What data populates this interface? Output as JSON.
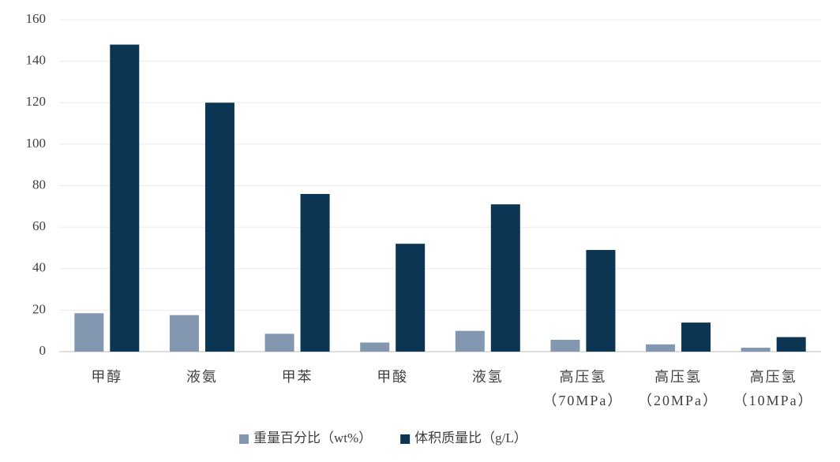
{
  "chart_data": {
    "type": "bar",
    "categories": [
      "甲醇",
      "液氨",
      "甲苯",
      "甲酸",
      "液氢",
      "高压氢\n（70MPa）",
      "高压氢\n（20MPa）",
      "高压氢\n（10MPa）"
    ],
    "series": [
      {
        "name": "重量百分比（wt%）",
        "color": "#8497b0",
        "values": [
          18.5,
          17.6,
          8.6,
          4.4,
          10,
          5.7,
          3.5,
          1.9
        ]
      },
      {
        "name": "体积质量比（g/L）",
        "color": "#0b3552",
        "values": [
          148,
          120,
          76,
          52,
          71,
          49,
          14,
          7
        ]
      }
    ],
    "ylim": [
      0,
      160
    ],
    "yticks": [
      0,
      20,
      40,
      60,
      80,
      100,
      120,
      140,
      160
    ],
    "grid": true,
    "legend": "bottom"
  }
}
